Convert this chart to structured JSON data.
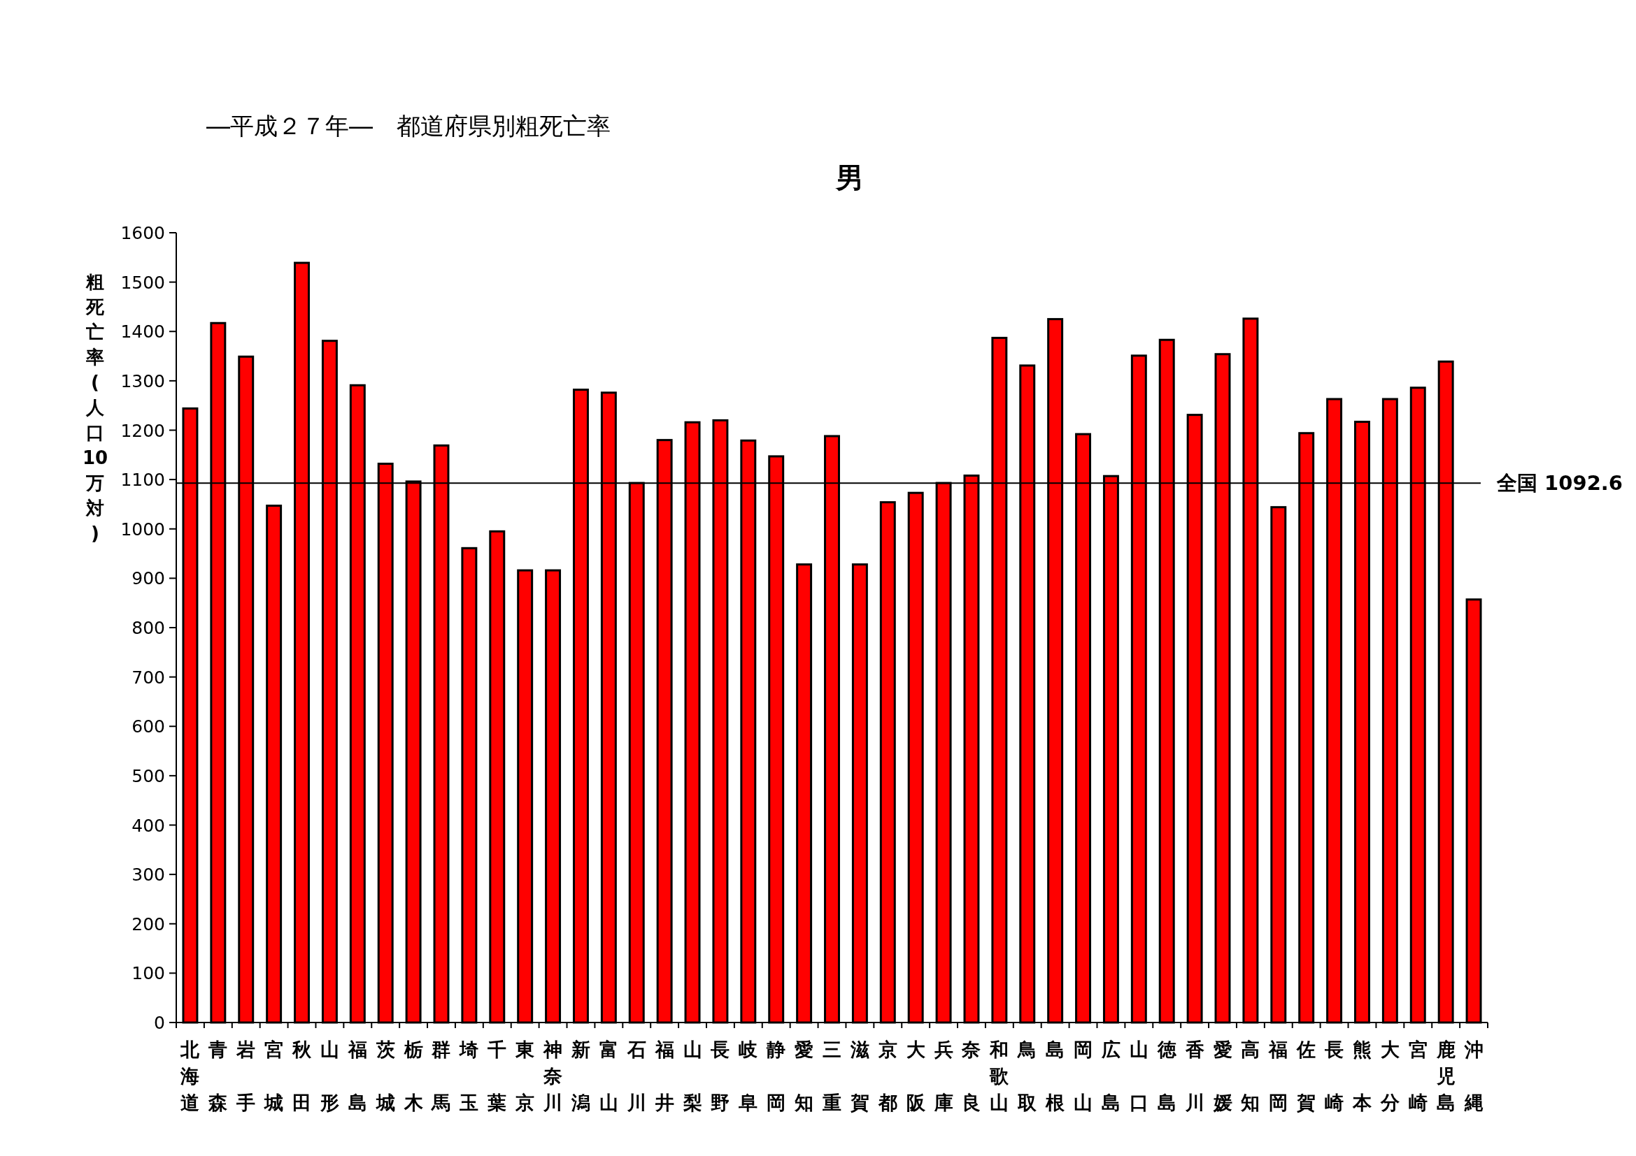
{
  "chart_data": {
    "type": "bar",
    "title": "―平成２７年―　都道府県別粗死亡率",
    "subtitle": "男",
    "ylabel": "粗死亡率(人口10万対)",
    "categories": [
      "北海道",
      "青森",
      "岩手",
      "宮城",
      "秋田",
      "山形",
      "福島",
      "茨城",
      "栃木",
      "群馬",
      "埼玉",
      "千葉",
      "東京",
      "神奈川",
      "新潟",
      "富山",
      "石川",
      "福井",
      "山梨",
      "長野",
      "岐阜",
      "静岡",
      "愛知",
      "三重",
      "滋賀",
      "京都",
      "大阪",
      "兵庫",
      "奈良",
      "和歌山",
      "鳥取",
      "島根",
      "岡山",
      "広島",
      "山口",
      "徳島",
      "香川",
      "愛媛",
      "高知",
      "福岡",
      "佐賀",
      "長崎",
      "熊本",
      "大分",
      "宮崎",
      "鹿児島",
      "沖縄"
    ],
    "values": [
      1244,
      1417,
      1349,
      1047,
      1539,
      1381,
      1291,
      1132,
      1096,
      1169,
      961,
      995,
      916,
      916,
      1282,
      1276,
      1093,
      1180,
      1216,
      1220,
      1179,
      1147,
      928,
      1188,
      928,
      1054,
      1073,
      1093,
      1108,
      1387,
      1331,
      1425,
      1192,
      1107,
      1351,
      1383,
      1231,
      1354,
      1426,
      1044,
      1194,
      1263,
      1217,
      1263,
      1286,
      1339,
      857
    ],
    "color": "#ff0000",
    "ylim": [
      0,
      1600
    ],
    "yticks": [
      0,
      100,
      200,
      300,
      400,
      500,
      600,
      700,
      800,
      900,
      1000,
      1100,
      1200,
      1300,
      1400,
      1500,
      1600
    ],
    "ref_lines": [
      {
        "axis": "y",
        "value": 1092.6,
        "label": "全国 1092.6",
        "color": "#000000"
      }
    ]
  }
}
